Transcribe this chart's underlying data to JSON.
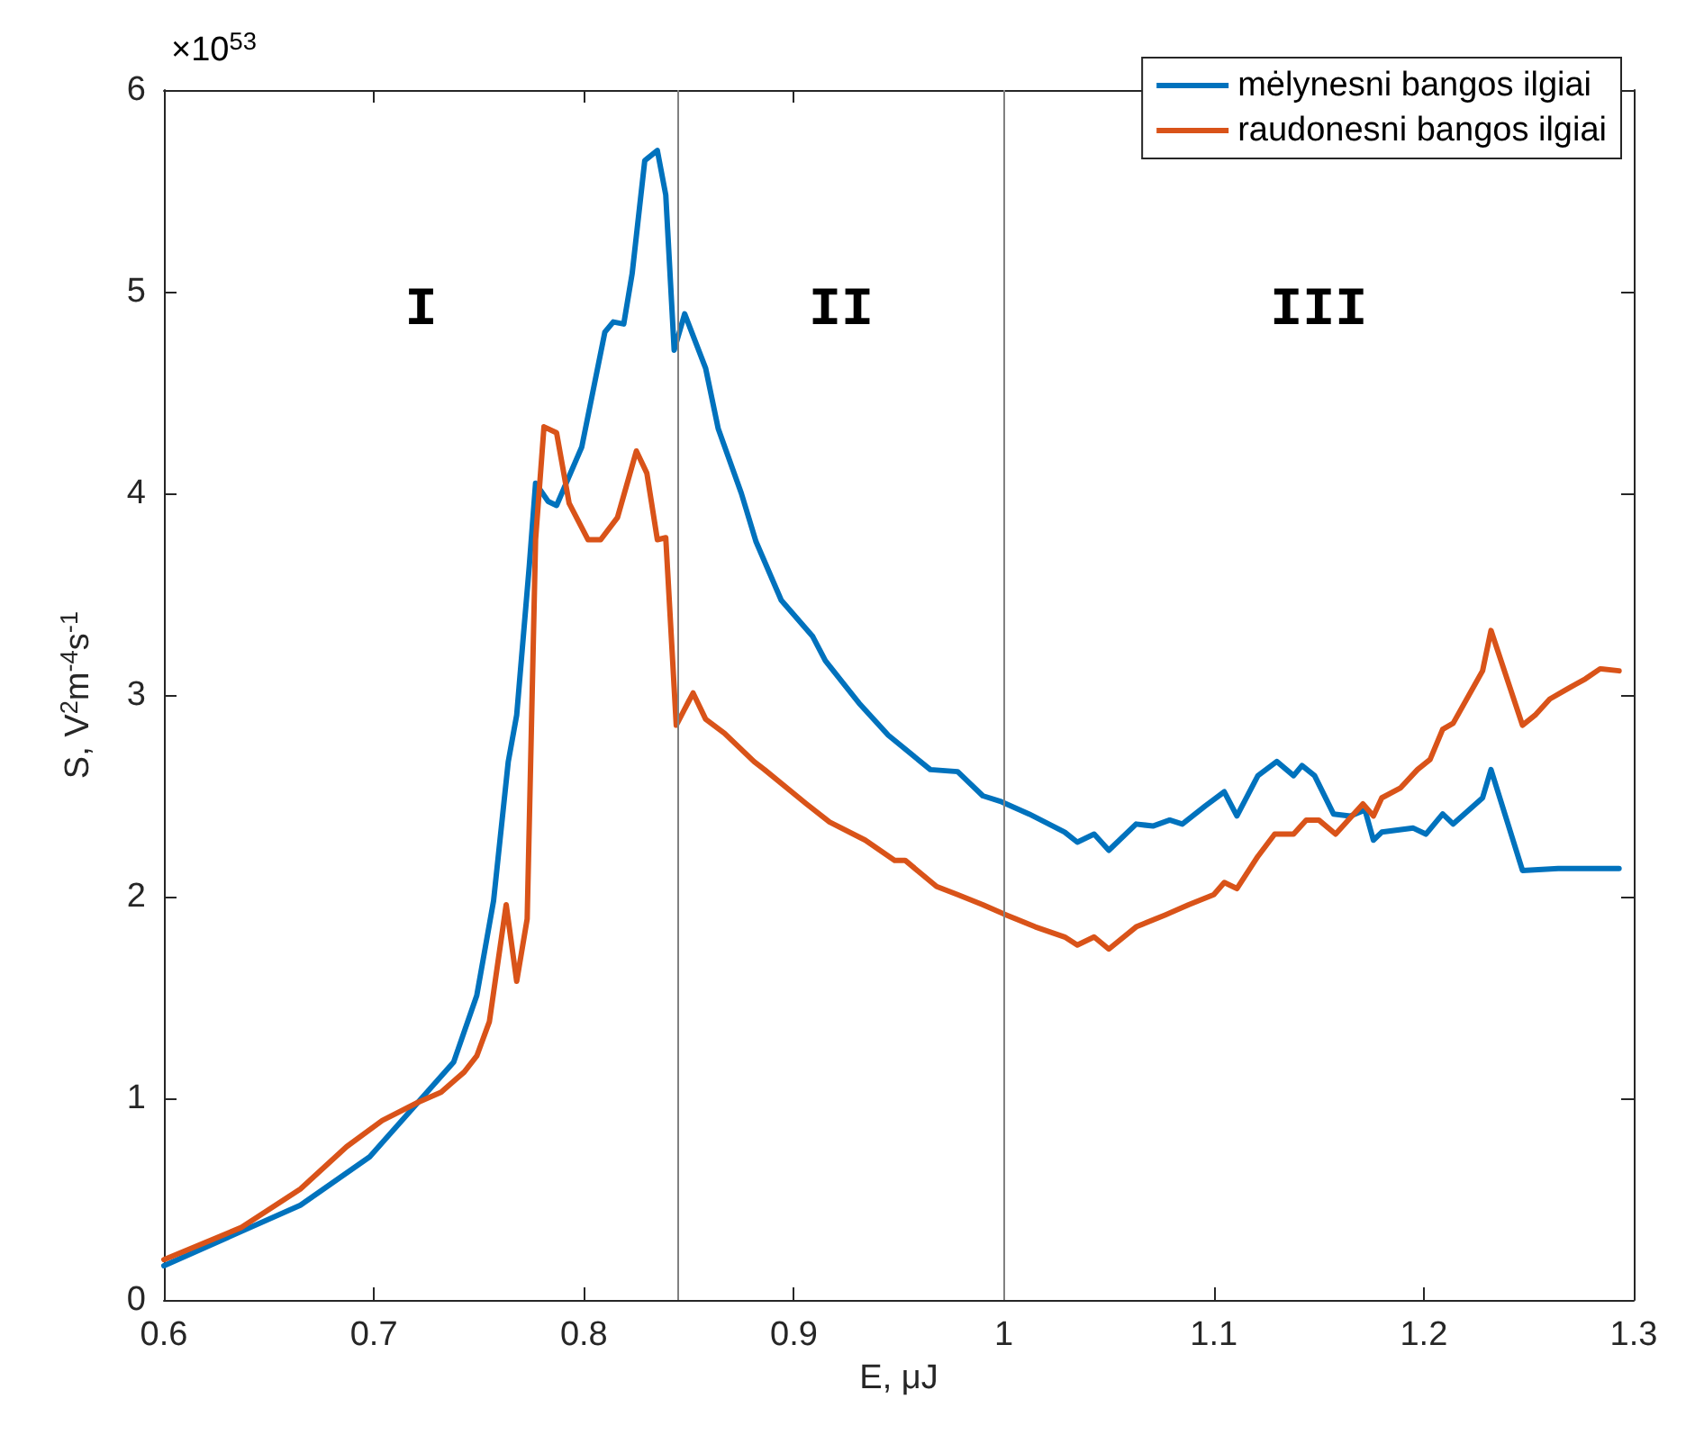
{
  "chart_data": {
    "type": "line",
    "xlabel": "E, μJ",
    "ylabel": "S, V$^{2}$m$^{-4}$s$^{-1}$",
    "xlim": [
      0.6,
      1.3
    ],
    "xticks": [
      0.6,
      0.7,
      0.8,
      0.9,
      1,
      1.1,
      1.2,
      1.3
    ],
    "ylim": [
      0,
      6
    ],
    "yticks": [
      0,
      1,
      2,
      3,
      4,
      5,
      6
    ],
    "grid": false,
    "legend": "top right",
    "marker": "none",
    "line_style": "solid",
    "ref_lines": [
      {
        "axis": "x",
        "value": 0.845,
        "color": "#808080"
      },
      {
        "axis": "x",
        "value": 1,
        "color": "#808080"
      }
    ],
    "annotations": [
      "×10$^{53}$",
      "I",
      "II",
      "III"
    ],
    "series": [
      {
        "name": "mėlynesni bangos ilgiai",
        "color": "#0072bd",
        "x": [
          0.6,
          0.665,
          0.698,
          0.721,
          0.738,
          0.749,
          0.757,
          0.764,
          0.768,
          0.774,
          0.777,
          0.783,
          0.787,
          0.799,
          0.81,
          0.814,
          0.819,
          0.823,
          0.829,
          0.835,
          0.839,
          0.843,
          0.848,
          0.858,
          0.864,
          0.875,
          0.882,
          0.894,
          0.909,
          0.915,
          0.931,
          0.945,
          0.965,
          0.978,
          0.99,
          0.999,
          1.012,
          1.029,
          1.035,
          1.043,
          1.05,
          1.063,
          1.071,
          1.079,
          1.085,
          1.096,
          1.105,
          1.111,
          1.121,
          1.13,
          1.138,
          1.142,
          1.148,
          1.157,
          1.165,
          1.172,
          1.176,
          1.18,
          1.195,
          1.201,
          1.209,
          1.214,
          1.228,
          1.232,
          1.247,
          1.264,
          1.293
        ],
        "values": [
          0.17,
          0.47,
          0.71,
          0.98,
          1.18,
          1.51,
          1.98,
          2.67,
          2.9,
          3.64,
          4.05,
          3.96,
          3.94,
          4.23,
          4.8,
          4.85,
          4.84,
          5.09,
          5.65,
          5.7,
          5.48,
          4.71,
          4.89,
          4.62,
          4.32,
          4.0,
          3.76,
          3.47,
          3.29,
          3.17,
          2.96,
          2.8,
          2.63,
          2.62,
          2.5,
          2.47,
          2.41,
          2.32,
          2.27,
          2.31,
          2.23,
          2.36,
          2.35,
          2.38,
          2.36,
          2.45,
          2.52,
          2.4,
          2.6,
          2.67,
          2.6,
          2.65,
          2.6,
          2.41,
          2.4,
          2.43,
          2.28,
          2.32,
          2.34,
          2.31,
          2.41,
          2.36,
          2.49,
          2.63,
          2.13,
          2.14,
          2.14
        ]
      },
      {
        "name": "raudonesni bangos ilgiai",
        "color": "#d95319",
        "x": [
          0.6,
          0.637,
          0.665,
          0.687,
          0.704,
          0.721,
          0.732,
          0.743,
          0.749,
          0.755,
          0.763,
          0.768,
          0.773,
          0.777,
          0.781,
          0.787,
          0.793,
          0.802,
          0.808,
          0.816,
          0.825,
          0.83,
          0.835,
          0.839,
          0.844,
          0.852,
          0.858,
          0.867,
          0.881,
          0.886,
          0.906,
          0.917,
          0.934,
          0.948,
          0.953,
          0.968,
          0.978,
          0.99,
          1.001,
          1.015,
          1.029,
          1.035,
          1.043,
          1.05,
          1.063,
          1.077,
          1.088,
          1.1,
          1.105,
          1.111,
          1.121,
          1.129,
          1.138,
          1.144,
          1.15,
          1.158,
          1.171,
          1.176,
          1.18,
          1.189,
          1.197,
          1.203,
          1.209,
          1.214,
          1.228,
          1.232,
          1.247,
          1.253,
          1.26,
          1.27,
          1.277,
          1.284,
          1.293
        ],
        "values": [
          0.2,
          0.36,
          0.55,
          0.76,
          0.89,
          0.98,
          1.03,
          1.13,
          1.21,
          1.38,
          1.96,
          1.58,
          1.89,
          3.77,
          4.33,
          4.3,
          3.95,
          3.77,
          3.77,
          3.88,
          4.21,
          4.1,
          3.77,
          3.78,
          2.85,
          3.01,
          2.88,
          2.81,
          2.67,
          2.63,
          2.46,
          2.37,
          2.28,
          2.18,
          2.18,
          2.05,
          2.01,
          1.96,
          1.91,
          1.85,
          1.8,
          1.76,
          1.8,
          1.74,
          1.85,
          1.91,
          1.96,
          2.01,
          2.07,
          2.04,
          2.2,
          2.31,
          2.31,
          2.38,
          2.38,
          2.31,
          2.46,
          2.4,
          2.49,
          2.54,
          2.63,
          2.68,
          2.83,
          2.86,
          3.12,
          3.32,
          2.85,
          2.9,
          2.98,
          3.04,
          3.08,
          3.13,
          3.12
        ]
      }
    ]
  }
}
